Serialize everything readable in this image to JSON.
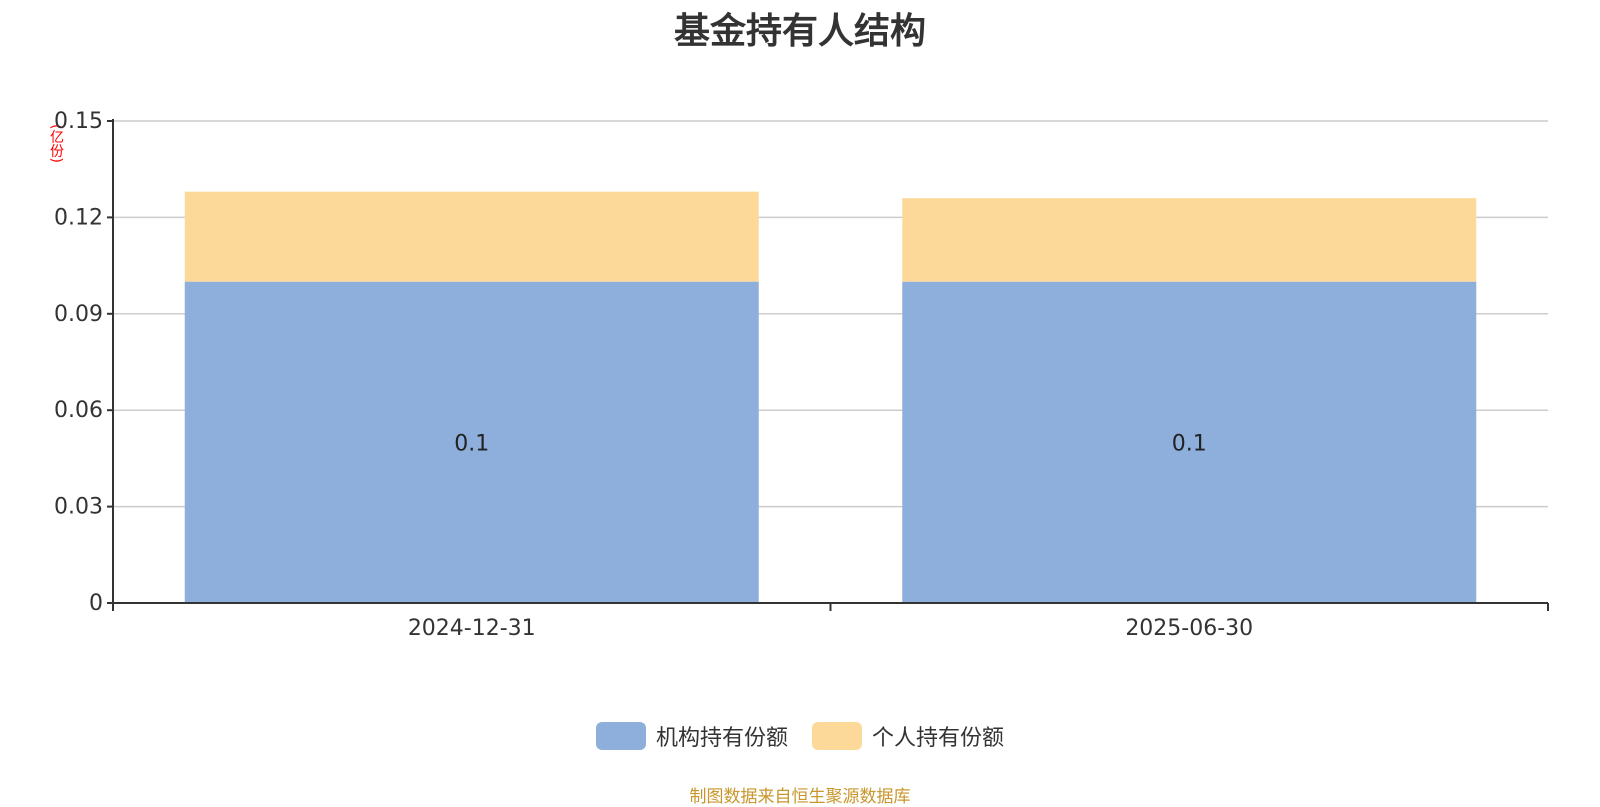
{
  "header": {
    "title": "基金持有人结构"
  },
  "axis": {
    "unit_label": "(亿份)"
  },
  "legend": {
    "items": [
      {
        "label": "机构持有份额",
        "color": "#8eaedb"
      },
      {
        "label": "个人持有份额",
        "color": "#fdd999"
      }
    ]
  },
  "footer": {
    "source": "制图数据来自恒生聚源数据库"
  },
  "chart_data": {
    "type": "bar",
    "stacked": true,
    "title": "基金持有人结构",
    "xlabel": "",
    "ylabel": "(亿份)",
    "ylim": [
      0,
      0.15
    ],
    "yticks": [
      0,
      0.03,
      0.06,
      0.09,
      0.12,
      0.15
    ],
    "ytick_labels": [
      "0",
      "0.03",
      "0.06",
      "0.09",
      "0.12",
      "0.15"
    ],
    "categories": [
      "2024-12-31",
      "2025-06-30"
    ],
    "series": [
      {
        "name": "机构持有份额",
        "values": [
          0.1,
          0.1
        ],
        "color": "#8eaedb",
        "data_labels": [
          "0.1",
          "0.1"
        ]
      },
      {
        "name": "个人持有份额",
        "values": [
          0.028,
          0.026
        ],
        "color": "#fdd999"
      }
    ],
    "grid": true,
    "legend_position": "bottom"
  }
}
